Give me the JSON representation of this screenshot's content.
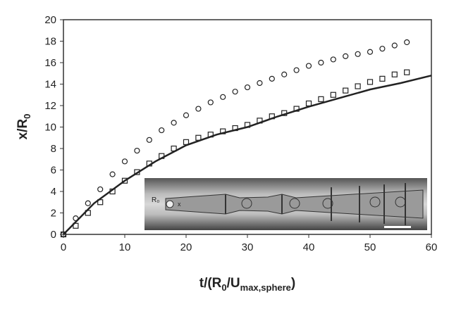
{
  "chart_data": {
    "type": "scatter",
    "xlabel_parts": [
      "t/(R",
      "0",
      "/U",
      "max,sphere",
      ")"
    ],
    "ylabel_parts": [
      "x/R",
      "0"
    ],
    "inset_labels": [
      "R₀",
      "x"
    ],
    "xlim": [
      0,
      60
    ],
    "xticks": [
      0,
      10,
      20,
      30,
      40,
      50,
      60
    ],
    "ylim": [
      0,
      20
    ],
    "yticks": [
      0,
      2,
      4,
      6,
      8,
      10,
      12,
      14,
      16,
      18,
      20
    ],
    "series": [
      {
        "marker": "circle",
        "color": "#222",
        "x": [
          0,
          2,
          4,
          6,
          8,
          10,
          12,
          14,
          16,
          18,
          20,
          22,
          24,
          26,
          28,
          30,
          32,
          34,
          36,
          38,
          40,
          42,
          44,
          46,
          48,
          50,
          52,
          54,
          56
        ],
        "values": [
          0,
          1.5,
          2.9,
          4.2,
          5.6,
          6.8,
          7.8,
          8.8,
          9.7,
          10.4,
          11.1,
          11.7,
          12.3,
          12.8,
          13.3,
          13.7,
          14.1,
          14.5,
          14.9,
          15.3,
          15.7,
          16.0,
          16.3,
          16.6,
          16.8,
          17.0,
          17.3,
          17.6,
          17.9
        ]
      },
      {
        "marker": "square",
        "color": "#222",
        "x": [
          0,
          2,
          4,
          6,
          8,
          10,
          12,
          14,
          16,
          18,
          20,
          22,
          24,
          26,
          28,
          30,
          32,
          34,
          36,
          38,
          40,
          42,
          44,
          46,
          48,
          50,
          52,
          54,
          56
        ],
        "values": [
          0,
          0.8,
          2.0,
          3.0,
          4.0,
          5.0,
          5.8,
          6.6,
          7.3,
          8.0,
          8.6,
          9.0,
          9.3,
          9.6,
          9.9,
          10.2,
          10.6,
          11.0,
          11.3,
          11.7,
          12.2,
          12.6,
          13.0,
          13.4,
          13.8,
          14.2,
          14.5,
          14.9,
          15.1
        ]
      },
      {
        "marker": "line",
        "color": "#222",
        "x": [
          0,
          5,
          10,
          15,
          20,
          25,
          30,
          35,
          40,
          45,
          50,
          55,
          60
        ],
        "values": [
          0,
          2.9,
          5.0,
          6.8,
          8.3,
          9.3,
          10.0,
          11.0,
          11.9,
          12.7,
          13.5,
          14.1,
          14.8
        ]
      }
    ]
  }
}
